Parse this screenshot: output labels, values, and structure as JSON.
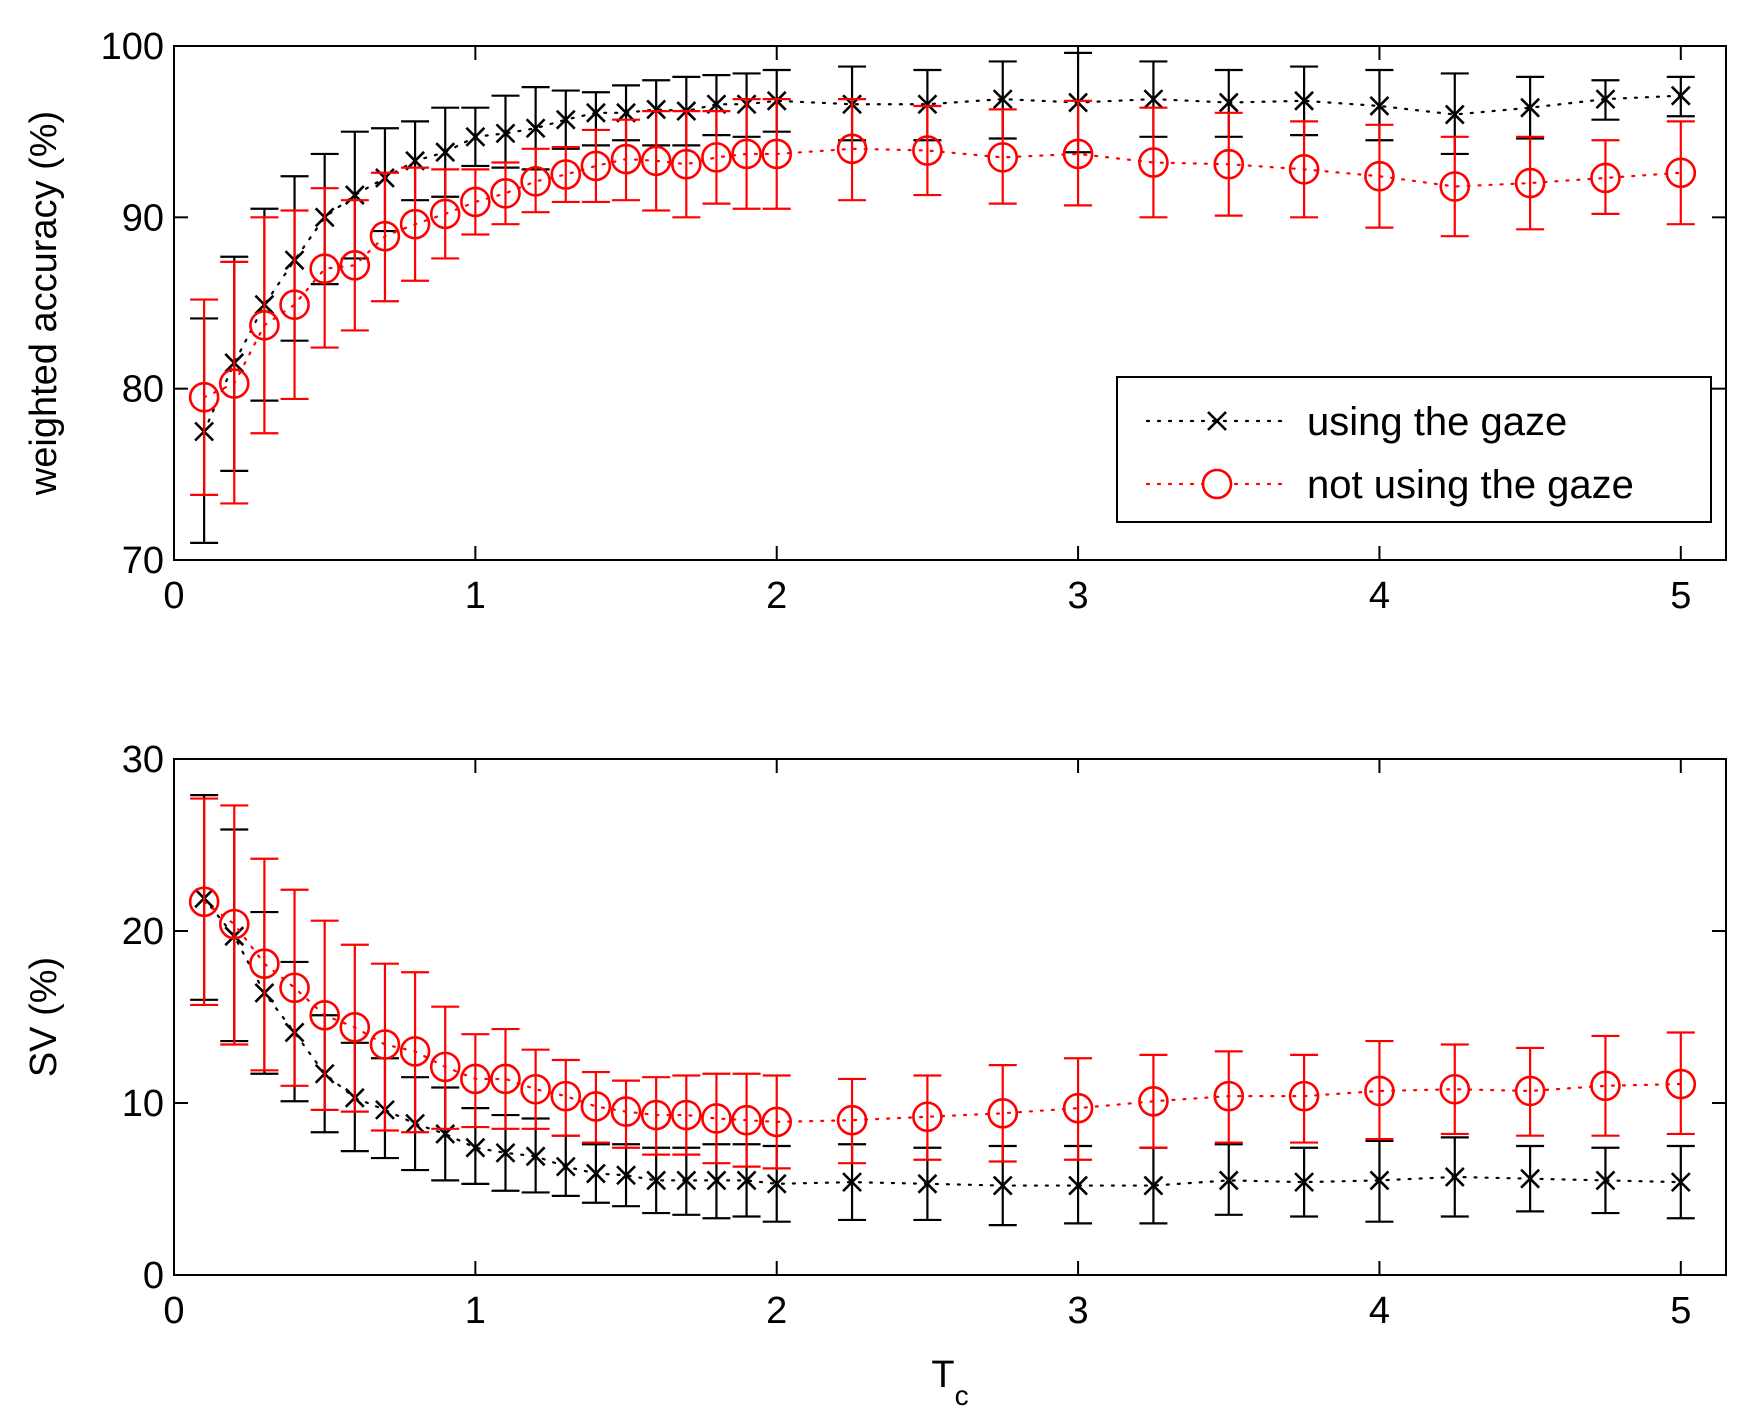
{
  "chart_data": [
    {
      "type": "scatter",
      "name": "accuracy-panel",
      "xlabel": "",
      "ylabel": "weighted accuracy (%)",
      "xlim": [
        0,
        5.15
      ],
      "ylim": [
        70,
        100
      ],
      "xticks": [
        0,
        1,
        2,
        3,
        4,
        5
      ],
      "yticks": [
        70,
        80,
        90,
        100
      ],
      "legend_position": "right",
      "series": [
        {
          "name": "using the gaze",
          "color": "#000000",
          "marker": "x",
          "line": "dotted",
          "x": [
            0.1,
            0.2,
            0.3,
            0.4,
            0.5,
            0.6,
            0.7,
            0.8,
            0.9,
            1.0,
            1.1,
            1.2,
            1.3,
            1.4,
            1.5,
            1.6,
            1.7,
            1.8,
            1.9,
            2.0,
            2.25,
            2.5,
            2.75,
            3.0,
            3.25,
            3.5,
            3.75,
            4.0,
            4.25,
            4.5,
            4.75,
            5.0
          ],
          "y": [
            77.5,
            81.5,
            84.9,
            87.5,
            90.0,
            91.3,
            92.3,
            93.3,
            93.8,
            94.7,
            94.9,
            95.2,
            95.7,
            96.1,
            96.1,
            96.3,
            96.2,
            96.6,
            96.6,
            96.8,
            96.6,
            96.6,
            96.9,
            96.7,
            96.9,
            96.7,
            96.8,
            96.5,
            96.0,
            96.4,
            96.9,
            97.1
          ],
          "err_low": [
            71.0,
            75.2,
            79.3,
            82.8,
            86.1,
            87.6,
            89.2,
            91.0,
            91.2,
            93.0,
            92.9,
            92.8,
            94.0,
            94.2,
            94.5,
            94.2,
            94.2,
            94.8,
            94.7,
            95.0,
            94.5,
            94.5,
            94.6,
            93.8,
            94.7,
            94.7,
            94.8,
            94.5,
            93.7,
            94.6,
            95.7,
            95.9
          ],
          "err_high": [
            84.1,
            87.7,
            90.5,
            92.4,
            93.7,
            95.0,
            95.2,
            95.6,
            96.4,
            96.4,
            97.1,
            97.6,
            97.4,
            97.3,
            97.7,
            98.0,
            98.2,
            98.3,
            98.4,
            98.6,
            98.8,
            98.6,
            99.1,
            99.6,
            99.1,
            98.6,
            98.8,
            98.6,
            98.4,
            98.2,
            98.0,
            98.2
          ]
        },
        {
          "name": "not using the gaze",
          "color": "#ff0000",
          "marker": "o",
          "line": "dotted",
          "x": [
            0.1,
            0.2,
            0.3,
            0.4,
            0.5,
            0.6,
            0.7,
            0.8,
            0.9,
            1.0,
            1.1,
            1.2,
            1.3,
            1.4,
            1.5,
            1.6,
            1.7,
            1.8,
            1.9,
            2.0,
            2.25,
            2.5,
            2.75,
            3.0,
            3.25,
            3.5,
            3.75,
            4.0,
            4.25,
            4.5,
            4.75,
            5.0
          ],
          "y": [
            79.5,
            80.3,
            83.7,
            84.9,
            87.0,
            87.2,
            88.9,
            89.6,
            90.2,
            90.9,
            91.4,
            92.1,
            92.5,
            93.0,
            93.4,
            93.3,
            93.1,
            93.5,
            93.7,
            93.7,
            94.0,
            93.9,
            93.5,
            93.7,
            93.2,
            93.1,
            92.8,
            92.4,
            91.8,
            92.0,
            92.3,
            92.6
          ],
          "err_low": [
            73.8,
            73.3,
            77.4,
            79.4,
            82.4,
            83.4,
            85.1,
            86.3,
            87.6,
            89.0,
            89.6,
            90.3,
            90.9,
            90.9,
            91.0,
            90.4,
            90.0,
            90.8,
            90.5,
            90.5,
            91.0,
            91.3,
            90.8,
            90.7,
            90.0,
            90.1,
            90.0,
            89.4,
            88.9,
            89.3,
            90.2,
            89.6
          ],
          "err_high": [
            85.2,
            87.4,
            90.0,
            90.4,
            91.7,
            91.0,
            92.6,
            92.9,
            92.8,
            92.8,
            93.2,
            94.0,
            94.1,
            95.1,
            95.7,
            96.2,
            96.2,
            96.2,
            96.9,
            96.9,
            96.9,
            96.5,
            96.3,
            96.8,
            96.4,
            96.1,
            95.6,
            95.4,
            94.7,
            94.7,
            94.5,
            95.6
          ]
        }
      ]
    },
    {
      "type": "scatter",
      "name": "sv-panel",
      "xlabel": "T",
      "xlabel_subscript": "c",
      "ylabel": "SV (%)",
      "xlim": [
        0,
        5.15
      ],
      "ylim": [
        0,
        30
      ],
      "xticks": [
        0,
        1,
        2,
        3,
        4,
        5
      ],
      "yticks": [
        0,
        10,
        20,
        30
      ],
      "series": [
        {
          "name": "using the gaze",
          "color": "#000000",
          "marker": "x",
          "line": "dotted",
          "x": [
            0.1,
            0.2,
            0.3,
            0.4,
            0.5,
            0.6,
            0.7,
            0.8,
            0.9,
            1.0,
            1.1,
            1.2,
            1.3,
            1.4,
            1.5,
            1.6,
            1.7,
            1.8,
            1.9,
            2.0,
            2.25,
            2.5,
            2.75,
            3.0,
            3.25,
            3.5,
            3.75,
            4.0,
            4.25,
            4.5,
            4.75,
            5.0
          ],
          "y": [
            21.9,
            19.7,
            16.4,
            14.1,
            11.7,
            10.3,
            9.6,
            8.8,
            8.2,
            7.4,
            7.1,
            6.9,
            6.3,
            5.9,
            5.8,
            5.5,
            5.5,
            5.5,
            5.5,
            5.3,
            5.4,
            5.3,
            5.2,
            5.2,
            5.2,
            5.5,
            5.4,
            5.5,
            5.7,
            5.6,
            5.5,
            5.4
          ],
          "err_low": [
            16.0,
            13.6,
            11.7,
            10.1,
            8.3,
            7.2,
            6.8,
            6.1,
            5.5,
            5.3,
            4.9,
            4.8,
            4.6,
            4.2,
            4.0,
            3.6,
            3.5,
            3.3,
            3.4,
            3.1,
            3.2,
            3.2,
            2.9,
            3.0,
            3.0,
            3.5,
            3.4,
            3.1,
            3.4,
            3.7,
            3.6,
            3.3
          ],
          "err_high": [
            27.9,
            25.9,
            21.1,
            18.2,
            15.1,
            13.5,
            12.6,
            11.5,
            10.9,
            9.7,
            9.3,
            9.1,
            8.1,
            7.6,
            7.6,
            7.4,
            7.4,
            7.6,
            7.6,
            7.5,
            7.6,
            7.4,
            7.5,
            7.5,
            7.4,
            7.6,
            7.4,
            7.8,
            8.0,
            7.5,
            7.4,
            7.5
          ]
        },
        {
          "name": "not using the gaze",
          "color": "#ff0000",
          "marker": "o",
          "line": "dotted",
          "x": [
            0.1,
            0.2,
            0.3,
            0.4,
            0.5,
            0.6,
            0.7,
            0.8,
            0.9,
            1.0,
            1.1,
            1.2,
            1.3,
            1.4,
            1.5,
            1.6,
            1.7,
            1.8,
            1.9,
            2.0,
            2.25,
            2.5,
            2.75,
            3.0,
            3.25,
            3.5,
            3.75,
            4.0,
            4.25,
            4.5,
            4.75,
            5.0
          ],
          "y": [
            21.7,
            20.4,
            18.1,
            16.7,
            15.1,
            14.4,
            13.4,
            13.0,
            12.1,
            11.4,
            11.4,
            10.8,
            10.4,
            9.8,
            9.5,
            9.3,
            9.3,
            9.1,
            9.0,
            8.9,
            9.0,
            9.2,
            9.4,
            9.7,
            10.1,
            10.4,
            10.4,
            10.7,
            10.8,
            10.7,
            11.0,
            11.1
          ],
          "err_low": [
            15.7,
            13.4,
            11.9,
            11.0,
            9.6,
            9.5,
            8.4,
            8.3,
            8.5,
            8.6,
            8.5,
            8.5,
            8.1,
            7.7,
            7.4,
            7.0,
            7.0,
            6.5,
            6.3,
            6.2,
            6.5,
            6.7,
            6.6,
            6.7,
            7.4,
            7.7,
            7.7,
            7.9,
            8.2,
            8.1,
            8.1,
            8.2
          ],
          "err_high": [
            27.7,
            27.3,
            24.2,
            22.4,
            20.6,
            19.2,
            18.1,
            17.6,
            15.6,
            14.0,
            14.3,
            13.1,
            12.5,
            11.8,
            11.3,
            11.5,
            11.6,
            11.7,
            11.7,
            11.6,
            11.4,
            11.6,
            12.2,
            12.6,
            12.8,
            13.0,
            12.8,
            13.6,
            13.4,
            13.2,
            13.9,
            14.1
          ]
        }
      ]
    }
  ]
}
